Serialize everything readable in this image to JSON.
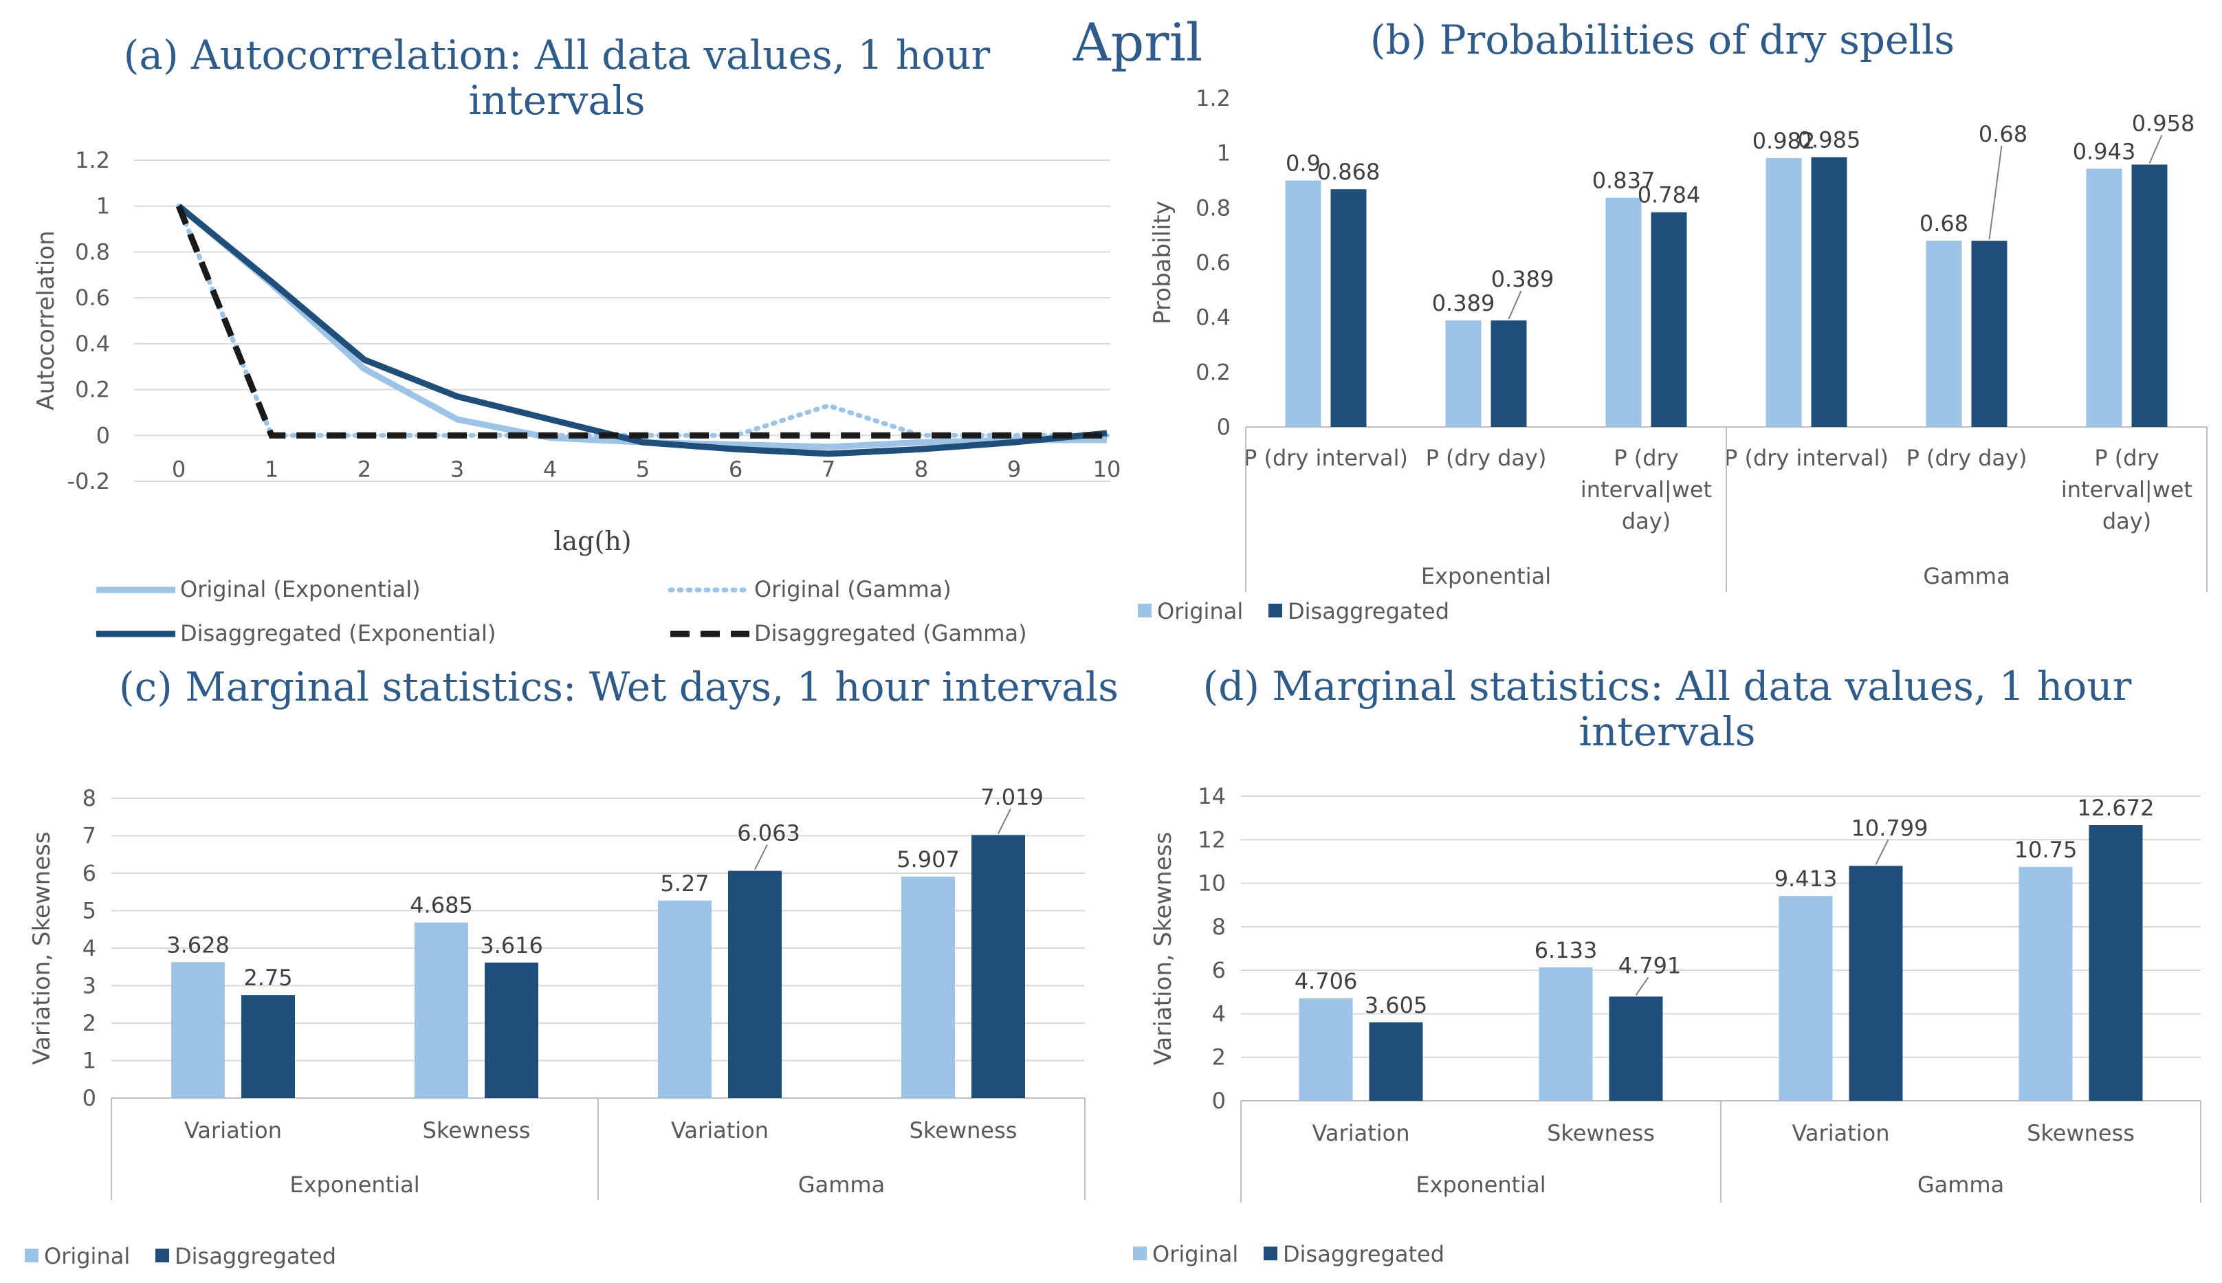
{
  "figure_title": "April",
  "colors": {
    "original": "#9dc3e6",
    "disaggregated": "#1f4e79",
    "grid": "#d9d9d9",
    "axis": "#bfbfbf",
    "text": "#595959",
    "gamma_disagg": "#1a1a1a"
  },
  "chart_data": [
    {
      "id": "a",
      "type": "line",
      "title": "(a) Autocorrelation: All data values, 1 hour intervals",
      "title_lines": [
        "(a) Autocorrelation: All data values, 1 hour",
        "intervals"
      ],
      "xlabel": "lag(h)",
      "ylabel": "Autocorrelation",
      "x": [
        0,
        1,
        2,
        3,
        4,
        5,
        6,
        7,
        8,
        9,
        10
      ],
      "ylim": [
        -0.2,
        1.2
      ],
      "yticks": [
        -0.2,
        0,
        0.2,
        0.4,
        0.6,
        0.8,
        1,
        1.2
      ],
      "ytick_labels": [
        "-0.2",
        "0",
        "0.2",
        "0.4",
        "0.6",
        "0.8",
        "1",
        "1.2"
      ],
      "grid": true,
      "series": [
        {
          "name": "Original (Exponential)",
          "style": "solid-light",
          "values": [
            1,
            0.66,
            0.29,
            0.07,
            -0.01,
            -0.03,
            -0.04,
            -0.05,
            -0.03,
            -0.02,
            -0.02
          ]
        },
        {
          "name": "Original (Gamma)",
          "style": "dotted-light",
          "values": [
            1,
            0,
            0,
            0,
            0,
            0,
            0,
            0.13,
            0,
            0,
            0
          ]
        },
        {
          "name": "Disaggregated (Exponential)",
          "style": "solid-dark",
          "values": [
            1,
            0.67,
            0.33,
            0.17,
            0.07,
            -0.03,
            -0.06,
            -0.08,
            -0.06,
            -0.03,
            0.01
          ]
        },
        {
          "name": "Disaggregated (Gamma)",
          "style": "dashed-black",
          "values": [
            1,
            0,
            0,
            0,
            0,
            0,
            0,
            0,
            0,
            0,
            0
          ]
        }
      ]
    },
    {
      "id": "b",
      "type": "bar",
      "title": "(b) Probabilities of dry spells",
      "ylabel": "Probability",
      "ylim": [
        0,
        1.2
      ],
      "yticks": [
        0,
        0.2,
        0.4,
        0.6,
        0.8,
        1,
        1.2
      ],
      "ytick_labels": [
        "0",
        "0.2",
        "0.4",
        "0.6",
        "0.8",
        "1",
        "1.2"
      ],
      "grid": false,
      "groups": [
        {
          "name": "Exponential",
          "categories": [
            [
              "P (dry interval)"
            ],
            [
              "P (dry day)"
            ],
            [
              "P (dry",
              "interval|wet",
              "day)"
            ]
          ]
        },
        {
          "name": "Gamma",
          "categories": [
            [
              "P (dry interval)"
            ],
            [
              "P (dry day)"
            ],
            [
              "P (dry",
              "interval|wet",
              "day)"
            ]
          ]
        }
      ],
      "series": [
        {
          "name": "Original",
          "values": [
            0.9,
            0.389,
            0.837,
            0.982,
            0.68,
            0.943
          ],
          "labels": [
            "0.9",
            "0.389",
            "0.837",
            "0.982",
            "0.68",
            "0.943"
          ]
        },
        {
          "name": "Disaggregated",
          "values": [
            0.868,
            0.389,
            0.784,
            0.985,
            0.68,
            0.958
          ],
          "labels": [
            "0.868",
            "0.389",
            "0.784",
            "0.985",
            "0.68",
            "0.958"
          ]
        }
      ],
      "legend": [
        "Original",
        "Disaggregated"
      ]
    },
    {
      "id": "c",
      "type": "bar",
      "title": "(c) Marginal statistics: Wet days, 1 hour intervals",
      "ylabel": "Variation, Skewness",
      "ylim": [
        0,
        8
      ],
      "yticks": [
        0,
        1,
        2,
        3,
        4,
        5,
        6,
        7,
        8
      ],
      "ytick_labels": [
        "0",
        "1",
        "2",
        "3",
        "4",
        "5",
        "6",
        "7",
        "8"
      ],
      "grid": true,
      "groups": [
        {
          "name": "Exponential",
          "categories": [
            [
              "Variation"
            ],
            [
              "Skewness"
            ]
          ]
        },
        {
          "name": "Gamma",
          "categories": [
            [
              "Variation"
            ],
            [
              "Skewness"
            ]
          ]
        }
      ],
      "series": [
        {
          "name": "Original",
          "values": [
            3.628,
            4.685,
            5.27,
            5.907
          ],
          "labels": [
            "3.628",
            "4.685",
            "5.27",
            "5.907"
          ]
        },
        {
          "name": "Disaggregated",
          "values": [
            2.75,
            3.616,
            6.063,
            7.019
          ],
          "labels": [
            "2.75",
            "3.616",
            "6.063",
            "7.019"
          ]
        }
      ],
      "legend": [
        "Original",
        "Disaggregated"
      ]
    },
    {
      "id": "d",
      "type": "bar",
      "title": "(d) Marginal statistics: All data values, 1 hour intervals",
      "title_lines": [
        "(d) Marginal statistics: All data values, 1 hour",
        "intervals"
      ],
      "ylabel": "Variation, Skewness",
      "ylim": [
        0,
        14
      ],
      "yticks": [
        0,
        2,
        4,
        6,
        8,
        10,
        12,
        14
      ],
      "ytick_labels": [
        "0",
        "2",
        "4",
        "6",
        "8",
        "10",
        "12",
        "14"
      ],
      "grid": true,
      "groups": [
        {
          "name": "Exponential",
          "categories": [
            [
              "Variation"
            ],
            [
              "Skewness"
            ]
          ]
        },
        {
          "name": "Gamma",
          "categories": [
            [
              "Variation"
            ],
            [
              "Skewness"
            ]
          ]
        }
      ],
      "series": [
        {
          "name": "Original",
          "values": [
            4.706,
            6.133,
            9.413,
            10.75
          ],
          "labels": [
            "4.706",
            "6.133",
            "9.413",
            "10.75"
          ]
        },
        {
          "name": "Disaggregated",
          "values": [
            3.605,
            4.791,
            10.799,
            12.672
          ],
          "labels": [
            "3.605",
            "4.791",
            "10.799",
            "12.672"
          ]
        }
      ],
      "legend": [
        "Original",
        "Disaggregated"
      ]
    }
  ]
}
